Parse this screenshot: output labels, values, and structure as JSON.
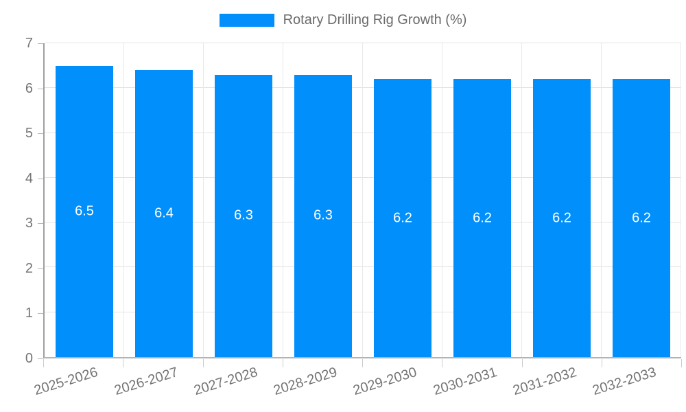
{
  "chart_data": {
    "type": "bar",
    "title": "",
    "legend": {
      "label": "Rotary Drilling Rig Growth (%)",
      "position": "top"
    },
    "categories": [
      "2025-2026",
      "2026-2027",
      "2027-2028",
      "2028-2029",
      "2029-2030",
      "2030-2031",
      "2031-2032",
      "2032-2033"
    ],
    "values": [
      6.5,
      6.4,
      6.3,
      6.3,
      6.2,
      6.2,
      6.2,
      6.2
    ],
    "value_labels": [
      "6.5",
      "6.4",
      "6.3",
      "6.3",
      "6.2",
      "6.2",
      "6.2",
      "6.2"
    ],
    "xlabel": "",
    "ylabel": "",
    "ylim": [
      0,
      7
    ],
    "yticks": [
      0,
      1,
      2,
      3,
      4,
      5,
      6,
      7
    ],
    "grid": true,
    "colors": {
      "bar": "#008FFB",
      "value_label": "#ffffff",
      "axis_label": "#757575",
      "legend_text": "#6b6b6b",
      "gridline_h": "#e3e3e3",
      "gridline_v": "#e8e8e8",
      "y_axis_line": "#9e9e9e",
      "x_axis_line": "#b3b3b3",
      "background": "#ffffff"
    }
  }
}
